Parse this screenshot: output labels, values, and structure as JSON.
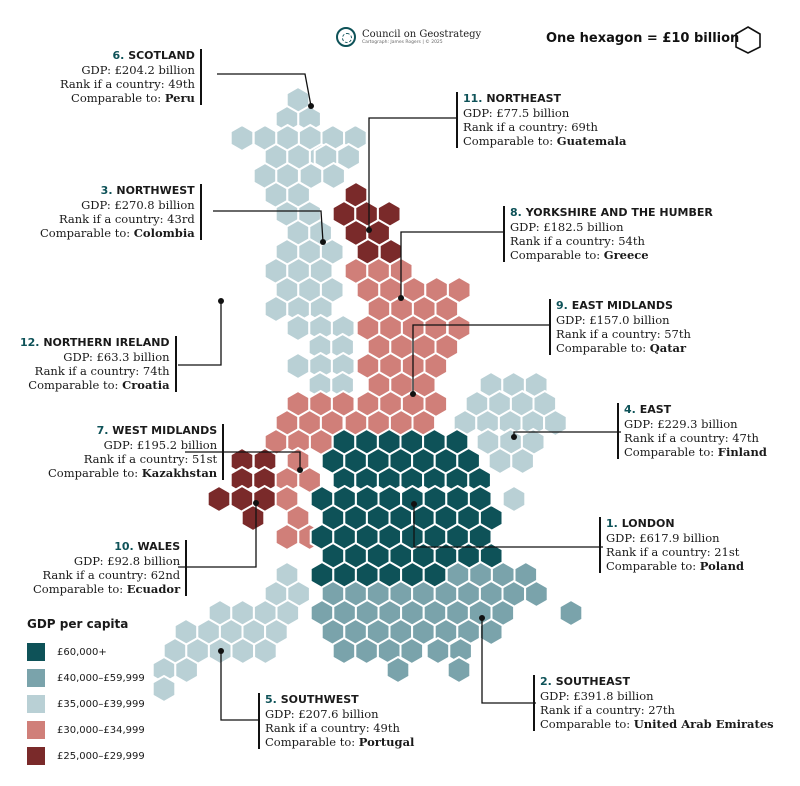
{
  "header": {
    "org": "Council on Geostrategy",
    "credit": "Cartograph: James Rogers | © 2025",
    "scale_note": "One hexagon = £10 billion"
  },
  "colors": {
    "c60": "#0e5258",
    "c40": "#7aa3ab",
    "c35": "#b9d0d5",
    "c30": "#d07f79",
    "c25": "#7a2a2a"
  },
  "legend": {
    "title": "GDP per capita",
    "items": [
      {
        "label": "£60,000+",
        "color": "#0e5258"
      },
      {
        "label": "£40,000–£59,999",
        "color": "#7aa3ab"
      },
      {
        "label": "£35,000–£39,999",
        "color": "#b9d0d5"
      },
      {
        "label": "£30,000–£34,999",
        "color": "#d07f79"
      },
      {
        "label": "£25,000–£29,999",
        "color": "#7a2a2a"
      }
    ]
  },
  "regions": {
    "scotland": {
      "num": "6.",
      "name": "SCOTLAND",
      "gdp": "GDP: £204.2 billion",
      "rank": "Rank if a country: 49th",
      "cmp_prefix": "Comparable to:",
      "cmp": "Peru"
    },
    "northeast": {
      "num": "11.",
      "name": "NORTHEAST",
      "gdp": "GDP: £77.5 billion",
      "rank": "Rank if a country: 69th",
      "cmp_prefix": "Comparable to:",
      "cmp": "Guatemala"
    },
    "northwest": {
      "num": "3.",
      "name": "NORTHWEST",
      "gdp": "GDP: £270.8 billion",
      "rank": "Rank if a country: 43rd",
      "cmp_prefix": "Comparable to:",
      "cmp": "Colombia"
    },
    "yorkshire": {
      "num": "8.",
      "name": "YORKSHIRE AND THE HUMBER",
      "gdp": "GDP: £182.5 billion",
      "rank": "Rank if a country: 54th",
      "cmp_prefix": "Comparable to:",
      "cmp": "Greece"
    },
    "eastmidlands": {
      "num": "9.",
      "name": "EAST MIDLANDS",
      "gdp": "GDP: £157.0 billion",
      "rank": "Rank if a country: 57th",
      "cmp_prefix": "Comparable to:",
      "cmp": "Qatar"
    },
    "northernireland": {
      "num": "12.",
      "name": "NORTHERN IRELAND",
      "gdp": "GDP: £63.3 billion",
      "rank": "Rank if a country: 74th",
      "cmp_prefix": "Comparable to:",
      "cmp": "Croatia"
    },
    "east": {
      "num": "4.",
      "name": "EAST",
      "gdp": "GDP: £229.3 billion",
      "rank": "Rank if a country: 47th",
      "cmp_prefix": "Comparable to:",
      "cmp": "Finland"
    },
    "westmidlands": {
      "num": "7.",
      "name": "WEST MIDLANDS",
      "gdp": "GDP: £195.2 billion",
      "rank": "Rank if a country: 51st",
      "cmp_prefix": "Comparable to:",
      "cmp": "Kazakhstan"
    },
    "london": {
      "num": "1.",
      "name": "LONDON",
      "gdp": "GDP: £617.9 billion",
      "rank": "Rank if a country: 21st",
      "cmp_prefix": "Comparable to:",
      "cmp": "Poland"
    },
    "wales": {
      "num": "10.",
      "name": "WALES",
      "gdp": "GDP: £92.8 billion",
      "rank": "Rank if a country: 62nd",
      "cmp_prefix": "Comparable to:",
      "cmp": "Ecuador"
    },
    "southeast": {
      "num": "2.",
      "name": "SOUTHEAST",
      "gdp": "GDP: £391.8 billion",
      "rank": "Rank if a country: 27th",
      "cmp_prefix": "Comparable to:",
      "cmp": "United Arab Emirates"
    },
    "southwest": {
      "num": "5.",
      "name": "SOUTHWEST",
      "gdp": "GDP: £207.6 billion",
      "rank": "Rank if a country: 49th",
      "cmp_prefix": "Comparable to:",
      "cmp": "Portugal"
    }
  }
}
